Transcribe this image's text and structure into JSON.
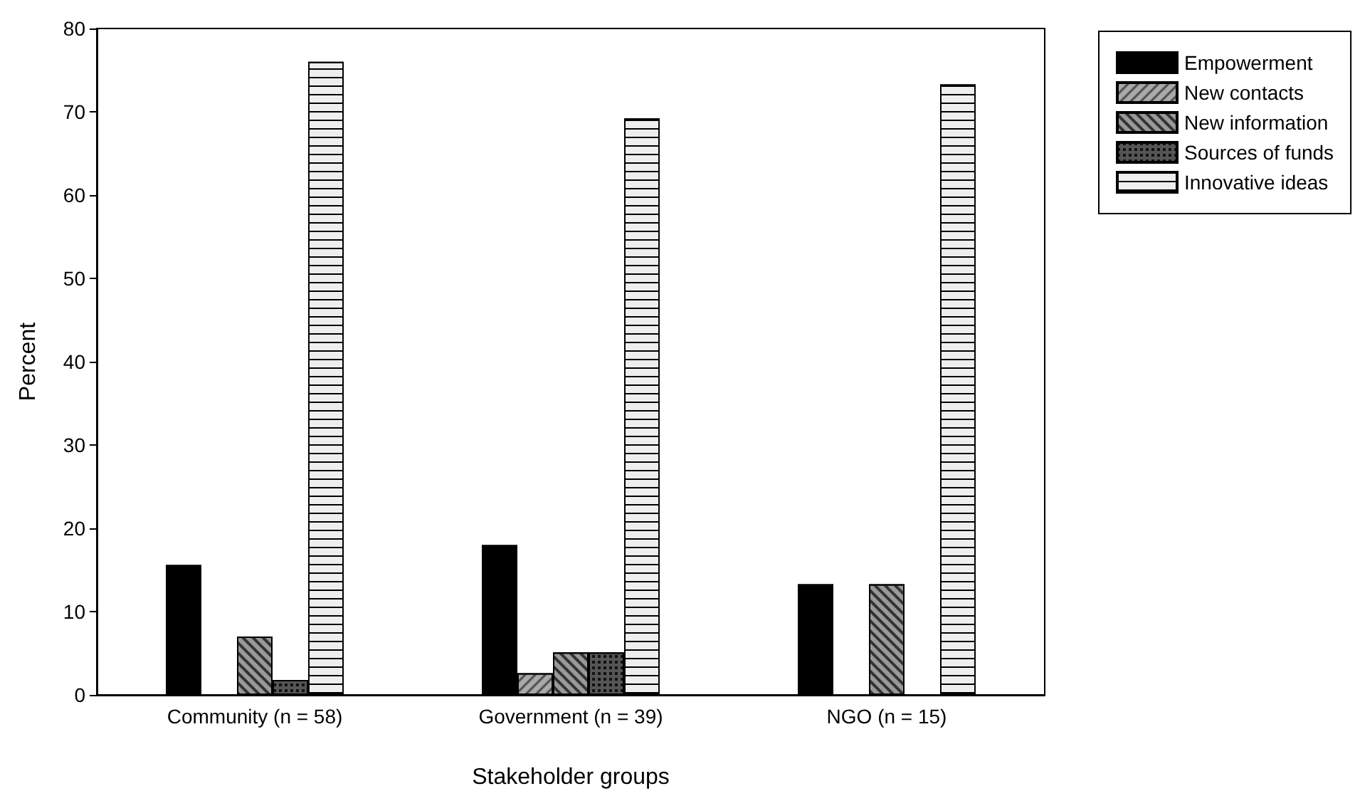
{
  "chart_data": {
    "type": "bar",
    "xlabel": "Stakeholder groups",
    "ylabel": "Percent",
    "categories": [
      "Community (n = 58)",
      "Government (n = 39)",
      "NGO (n = 15)"
    ],
    "series": [
      {
        "name": "Empowerment",
        "color": "#000000",
        "values": [
          15.6,
          18.0,
          13.3
        ]
      },
      {
        "name": "New contacts",
        "color": "#aaaaaa",
        "values": [
          0,
          2.6,
          0
        ]
      },
      {
        "name": "New information",
        "color": "#999999",
        "values": [
          7.0,
          5.1,
          13.3
        ]
      },
      {
        "name": "Sources of funds",
        "color": "#555555",
        "values": [
          1.8,
          5.1,
          0
        ]
      },
      {
        "name": "Innovative ideas",
        "color": "#eeeeee",
        "values": [
          76.0,
          69.2,
          73.3
        ]
      }
    ],
    "ylim": [
      0,
      80
    ],
    "yticks": [
      0,
      10,
      20,
      30,
      40,
      50,
      60,
      70,
      80
    ],
    "grid": false,
    "legend": "top right"
  }
}
